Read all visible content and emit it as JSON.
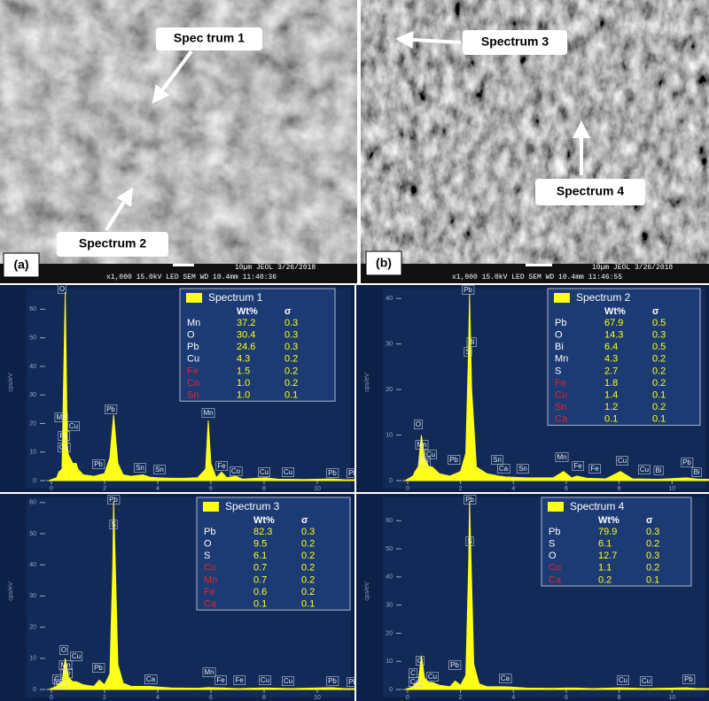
{
  "sem_images": [
    {
      "panel_label": "(a)",
      "callouts": [
        "Spec trum 1",
        "Spectrum 2"
      ],
      "info": "x1,000        15.0kV LED        SEM      WD 10.4mm 11:40:36",
      "scale": "10µm  JEOL     3/26/2018"
    },
    {
      "panel_label": "(b)",
      "callouts": [
        "Spectrum 3",
        "Spectrum 4"
      ],
      "info": "x1,000        15.0kV LED        SEM      WD 10.4mm 11:46:55",
      "scale": "10µm  JEOL     3/26/2018"
    }
  ],
  "chart_data": [
    {
      "type": "area",
      "title": "Spectrum 1",
      "color": "#ffff1a",
      "ylabel": "cps/eV",
      "x": [
        -0.1,
        0.2,
        0.28,
        0.4,
        0.52,
        0.6,
        0.64,
        0.7,
        0.8,
        0.93,
        1.0,
        1.2,
        1.6,
        1.8,
        2.0,
        2.2,
        2.34,
        2.5,
        2.7,
        3.0,
        3.44,
        3.7,
        4.0,
        4.5,
        5.0,
        5.5,
        5.8,
        5.9,
        6.0,
        6.2,
        6.4,
        6.6,
        6.93,
        7.2,
        8.05,
        8.5,
        9.5,
        10.55,
        11.0,
        11.4
      ],
      "values": [
        0,
        1,
        3,
        4,
        66,
        12,
        9,
        8,
        6,
        6,
        4,
        2,
        1.5,
        2,
        2.5,
        8,
        23,
        6,
        2,
        1.5,
        2,
        1.2,
        1,
        0.8,
        0.8,
        1,
        4,
        21,
        6,
        1,
        3,
        1,
        1.5,
        0.5,
        1,
        0.5,
        0.4,
        0.6,
        0.3,
        0.3
      ],
      "xlim": [
        -0.1,
        11.4
      ],
      "ylim": [
        0,
        66
      ],
      "xticks": [
        0,
        2,
        4,
        6,
        8,
        10
      ],
      "yticks": [
        0,
        10,
        20,
        30,
        40,
        50,
        60
      ],
      "peak_labels": [
        "O",
        "Mn",
        "Cu",
        "Fe",
        "Co",
        "Pb",
        "Pb",
        "Mn",
        "Sn",
        "Sn",
        "Fe",
        "Co",
        "Cu",
        "Cu",
        "Pb",
        "Pb"
      ],
      "table": {
        "columns": [
          "Wt%",
          "σ"
        ],
        "rows": [
          [
            "Mn",
            "37.2",
            "0.3"
          ],
          [
            "O",
            "30.4",
            "0.3"
          ],
          [
            "Pb",
            "24.6",
            "0.3"
          ],
          [
            "Cu",
            "4.3",
            "0.2"
          ],
          [
            "Fe",
            "1.5",
            "0.2"
          ],
          [
            "Co",
            "1.0",
            "0.2"
          ],
          [
            "Sn",
            "1.0",
            "0.1"
          ]
        ],
        "row_colors": [
          "#ffffff",
          "#ffffff",
          "#ffffff",
          "#ffffff",
          "#e02828",
          "#e02828",
          "#e02828"
        ]
      }
    },
    {
      "type": "area",
      "title": "Spectrum 2",
      "color": "#ffff1a",
      "ylabel": "cps/eV",
      "x": [
        -0.1,
        0.2,
        0.28,
        0.4,
        0.52,
        0.64,
        0.8,
        0.93,
        1.2,
        1.6,
        1.8,
        2.0,
        2.2,
        2.31,
        2.34,
        2.42,
        2.6,
        3.0,
        3.44,
        3.7,
        4.5,
        5.5,
        5.9,
        6.2,
        6.4,
        6.8,
        7.5,
        8.05,
        8.5,
        9.5,
        10.55,
        11.0,
        11.4
      ],
      "values": [
        0,
        1,
        2,
        3,
        10,
        5,
        3,
        3,
        1.5,
        1,
        1.5,
        2,
        6,
        30,
        41,
        20,
        3,
        1.5,
        1,
        0.8,
        0.6,
        0.6,
        2,
        0.6,
        1,
        0.5,
        0.4,
        2,
        0.4,
        0.3,
        0.6,
        0.3,
        0.3
      ],
      "xlim": [
        -0.1,
        11.4
      ],
      "ylim": [
        0,
        41.4
      ],
      "xticks": [
        0,
        2,
        4,
        6,
        8,
        10
      ],
      "yticks": [
        0,
        10,
        20,
        30,
        40
      ],
      "peak_labels": [
        "O",
        "Mn",
        "Cu",
        "Fe",
        "Pb",
        "Pb",
        "Bi",
        "S",
        "Sn",
        "Ca",
        "Sn",
        "Mn",
        "Fe",
        "Fe",
        "Cu",
        "Cu",
        "Bi",
        "Pb",
        "Bi"
      ],
      "table": {
        "columns": [
          "Wt%",
          "σ"
        ],
        "rows": [
          [
            "Pb",
            "67.9",
            "0.5"
          ],
          [
            "O",
            "14.3",
            "0.3"
          ],
          [
            "Bi",
            "6.4",
            "0.5"
          ],
          [
            "Mn",
            "4.3",
            "0.2"
          ],
          [
            "S",
            "2.7",
            "0.2"
          ],
          [
            "Fe",
            "1.8",
            "0.2"
          ],
          [
            "Cu",
            "1.4",
            "0.1"
          ],
          [
            "Sn",
            "1.2",
            "0.2"
          ],
          [
            "Ca",
            "0.1",
            "0.1"
          ]
        ],
        "row_colors": [
          "#ffffff",
          "#ffffff",
          "#ffffff",
          "#ffffff",
          "#ffffff",
          "#e02828",
          "#e02828",
          "#e02828",
          "#e02828"
        ]
      }
    },
    {
      "type": "area",
      "title": "Spectrum 3",
      "color": "#ffff1a",
      "ylabel": "cps/eV",
      "x": [
        -0.1,
        0.2,
        0.28,
        0.4,
        0.52,
        0.64,
        0.8,
        0.93,
        1.2,
        1.6,
        1.8,
        2.0,
        2.2,
        2.31,
        2.34,
        2.5,
        2.7,
        3.0,
        3.69,
        4.5,
        5.5,
        5.9,
        6.4,
        7.0,
        8.05,
        9.0,
        10.55,
        11.0,
        11.4
      ],
      "values": [
        0,
        1,
        2,
        2.5,
        10,
        4,
        2.5,
        2.5,
        1.5,
        1,
        3,
        1.5,
        5,
        40,
        60.5,
        8,
        2,
        1,
        1,
        0.5,
        0.4,
        0.6,
        0.5,
        0.3,
        0.5,
        0.3,
        0.6,
        0.3,
        0.3
      ],
      "xlim": [
        -0.1,
        11.4
      ],
      "ylim": [
        0,
        60.5
      ],
      "xticks": [
        0,
        2,
        4,
        6,
        8,
        10
      ],
      "yticks": [
        0,
        10,
        20,
        30,
        40,
        50,
        60
      ],
      "peak_labels": [
        "Pb",
        "S",
        "O",
        "Mn",
        "Cu",
        "Fe",
        "C",
        "Ca",
        "Pb",
        "Ca",
        "Mn",
        "Fe",
        "Fe",
        "Cu",
        "Cu",
        "Pb",
        "Pb"
      ],
      "table": {
        "columns": [
          "Wt%",
          "σ"
        ],
        "rows": [
          [
            "Pb",
            "82.3",
            "0.3"
          ],
          [
            "O",
            "9.5",
            "0.2"
          ],
          [
            "S",
            "6.1",
            "0.2"
          ],
          [
            "Cu",
            "0.7",
            "0.2"
          ],
          [
            "Mn",
            "0.7",
            "0.2"
          ],
          [
            "Fe",
            "0.6",
            "0.2"
          ],
          [
            "Ca",
            "0.1",
            "0.1"
          ]
        ],
        "row_colors": [
          "#ffffff",
          "#ffffff",
          "#ffffff",
          "#e02828",
          "#e02828",
          "#e02828",
          "#e02828"
        ]
      }
    },
    {
      "type": "area",
      "title": "Spectrum 4",
      "color": "#ffff1a",
      "ylabel": "cps/eV",
      "x": [
        -0.1,
        0.2,
        0.28,
        0.4,
        0.52,
        0.64,
        0.8,
        0.93,
        1.2,
        1.6,
        1.8,
        2.0,
        2.2,
        2.31,
        2.34,
        2.5,
        2.7,
        3.0,
        3.69,
        4.5,
        5.5,
        5.9,
        6.4,
        7.0,
        8.05,
        9.0,
        10.55,
        11.0,
        11.4
      ],
      "values": [
        0,
        1,
        2,
        2.5,
        12,
        4,
        2.5,
        2.5,
        1.5,
        1,
        3,
        1.5,
        5,
        45,
        67,
        9,
        2,
        1,
        1,
        0.5,
        0.4,
        0.5,
        0.5,
        0.3,
        0.6,
        0.3,
        0.6,
        0.3,
        0.3
      ],
      "xlim": [
        -0.1,
        11.4
      ],
      "ylim": [
        0,
        67
      ],
      "xticks": [
        0,
        2,
        4,
        6,
        8,
        10
      ],
      "yticks": [
        0,
        10,
        20,
        30,
        40,
        50,
        60
      ],
      "peak_labels": [
        "Pb",
        "S",
        "O",
        "C",
        "Ca",
        "Cu",
        "Pb",
        "Ca",
        "Cu",
        "Cu",
        "Pb"
      ],
      "table": {
        "columns": [
          "Wt%",
          "σ"
        ],
        "rows": [
          [
            "Pb",
            "79.9",
            "0.3"
          ],
          [
            "S",
            "6.1",
            "0.2"
          ],
          [
            "O",
            "12.7",
            "0.3"
          ],
          [
            "Cu",
            "1.1",
            "0.2"
          ],
          [
            "Ca",
            "0.2",
            "0.1"
          ]
        ],
        "row_colors": [
          "#ffffff",
          "#ffffff",
          "#ffffff",
          "#e02828",
          "#e02828"
        ]
      }
    }
  ]
}
